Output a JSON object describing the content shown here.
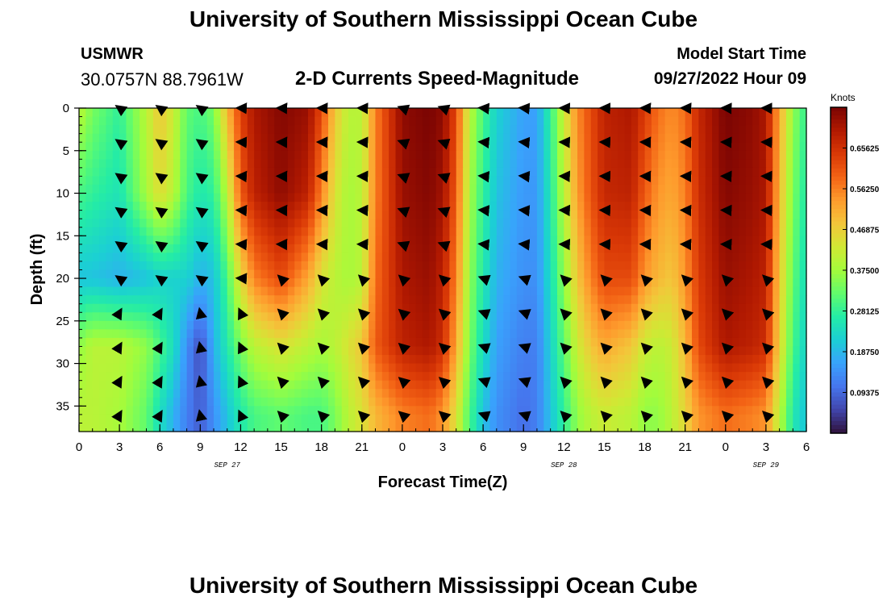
{
  "page": {
    "title": "University of Southern Mississippi Ocean Cube",
    "station": "USMWR",
    "coords": "30.0757N  88.7961W",
    "subtitle": "2-D Currents Speed-Magnitude",
    "model_label": "Model Start Time",
    "model_time": "09/27/2022 Hour 09",
    "second_title": "University of Southern Mississippi Ocean Cube"
  },
  "chart_data": {
    "type": "heatmap",
    "title": "2-D Currents Speed-Magnitude",
    "xlabel": "Forecast Time(Z)",
    "ylabel": "Depth (ft)",
    "x_tick_labels": [
      "0",
      "3",
      "6",
      "9",
      "12",
      "15",
      "18",
      "21",
      "0",
      "3",
      "6",
      "9",
      "12",
      "15",
      "18",
      "21",
      "0",
      "3",
      "6"
    ],
    "x_tick_hours": [
      0,
      3,
      6,
      9,
      12,
      15,
      18,
      21,
      24,
      27,
      30,
      33,
      36,
      39,
      42,
      45,
      48,
      51,
      54
    ],
    "x_range_hours": [
      0,
      54
    ],
    "date_labels": [
      {
        "text": "SEP 27",
        "hour": 11
      },
      {
        "text": "SEP 28",
        "hour": 36
      },
      {
        "text": "SEP 29",
        "hour": 51
      }
    ],
    "y_ticks": [
      0,
      5,
      10,
      15,
      20,
      25,
      30,
      35
    ],
    "y_range_ft": [
      0,
      38
    ],
    "colorbar": {
      "label": "Knots",
      "range": [
        0,
        0.75
      ],
      "ticks": [
        "0.09375",
        "0.18750",
        "0.28125",
        "0.37500",
        "0.46875",
        "0.56250",
        "0.65625"
      ],
      "tick_values": [
        0.09375,
        0.1875,
        0.28125,
        0.375,
        0.46875,
        0.5625,
        0.65625
      ],
      "colors": [
        "#30123b",
        "#4145ab",
        "#4675ed",
        "#39a2fc",
        "#1bcfd4",
        "#24eca6",
        "#61fc6c",
        "#a4fc3b",
        "#d1e834",
        "#f3c63a",
        "#fe9b2d",
        "#f36315",
        "#d93806",
        "#b11901",
        "#7a0403"
      ]
    },
    "arrow_hours": [
      3,
      6,
      9,
      12,
      15,
      18,
      21,
      24,
      27,
      30,
      33,
      36,
      39,
      42,
      45,
      48,
      51,
      54
    ],
    "arrow_depths_ft": [
      0,
      4,
      8,
      12,
      16,
      20,
      24,
      28,
      32,
      36
    ],
    "speed_anchors": {
      "hours": [
        0,
        1,
        3,
        5,
        6,
        7,
        8,
        9,
        10,
        11,
        12,
        13,
        15,
        17,
        18,
        19,
        20,
        21,
        22,
        24,
        26,
        27,
        28,
        29,
        30,
        31,
        33,
        34,
        35,
        36,
        37,
        38,
        39,
        41,
        42,
        43,
        44,
        45,
        46,
        48,
        50,
        51,
        52,
        53,
        54
      ],
      "surface": [
        0.4,
        0.34,
        0.28,
        0.4,
        0.48,
        0.42,
        0.32,
        0.3,
        0.34,
        0.5,
        0.63,
        0.7,
        0.74,
        0.72,
        0.62,
        0.48,
        0.4,
        0.4,
        0.56,
        0.73,
        0.75,
        0.73,
        0.62,
        0.4,
        0.3,
        0.22,
        0.16,
        0.16,
        0.28,
        0.42,
        0.55,
        0.62,
        0.68,
        0.7,
        0.64,
        0.58,
        0.55,
        0.58,
        0.67,
        0.75,
        0.73,
        0.7,
        0.52,
        0.36,
        0.28
      ],
      "depth10": [
        0.3,
        0.28,
        0.25,
        0.38,
        0.45,
        0.4,
        0.3,
        0.26,
        0.28,
        0.4,
        0.6,
        0.68,
        0.73,
        0.68,
        0.56,
        0.44,
        0.38,
        0.4,
        0.56,
        0.72,
        0.74,
        0.71,
        0.6,
        0.38,
        0.28,
        0.2,
        0.15,
        0.15,
        0.26,
        0.4,
        0.53,
        0.61,
        0.67,
        0.68,
        0.6,
        0.54,
        0.52,
        0.56,
        0.66,
        0.74,
        0.72,
        0.7,
        0.5,
        0.34,
        0.26
      ],
      "depth20": [
        0.2,
        0.2,
        0.18,
        0.2,
        0.22,
        0.22,
        0.22,
        0.18,
        0.2,
        0.3,
        0.45,
        0.56,
        0.62,
        0.52,
        0.44,
        0.4,
        0.38,
        0.4,
        0.58,
        0.7,
        0.72,
        0.68,
        0.56,
        0.36,
        0.26,
        0.18,
        0.14,
        0.14,
        0.24,
        0.36,
        0.48,
        0.56,
        0.62,
        0.62,
        0.54,
        0.5,
        0.48,
        0.54,
        0.64,
        0.72,
        0.7,
        0.68,
        0.48,
        0.32,
        0.24
      ],
      "depth28": [
        0.36,
        0.4,
        0.4,
        0.36,
        0.3,
        0.24,
        0.14,
        0.06,
        0.18,
        0.26,
        0.34,
        0.4,
        0.44,
        0.4,
        0.38,
        0.4,
        0.44,
        0.48,
        0.6,
        0.68,
        0.7,
        0.66,
        0.52,
        0.34,
        0.24,
        0.16,
        0.12,
        0.12,
        0.22,
        0.32,
        0.42,
        0.48,
        0.52,
        0.48,
        0.42,
        0.4,
        0.42,
        0.5,
        0.62,
        0.7,
        0.68,
        0.66,
        0.46,
        0.3,
        0.22
      ],
      "depth36": [
        0.4,
        0.4,
        0.38,
        0.32,
        0.24,
        0.18,
        0.12,
        0.08,
        0.14,
        0.2,
        0.26,
        0.3,
        0.32,
        0.3,
        0.3,
        0.34,
        0.4,
        0.44,
        0.5,
        0.56,
        0.58,
        0.54,
        0.44,
        0.3,
        0.2,
        0.14,
        0.1,
        0.12,
        0.2,
        0.28,
        0.36,
        0.4,
        0.42,
        0.4,
        0.36,
        0.36,
        0.4,
        0.46,
        0.54,
        0.58,
        0.56,
        0.54,
        0.4,
        0.26,
        0.2
      ]
    }
  }
}
